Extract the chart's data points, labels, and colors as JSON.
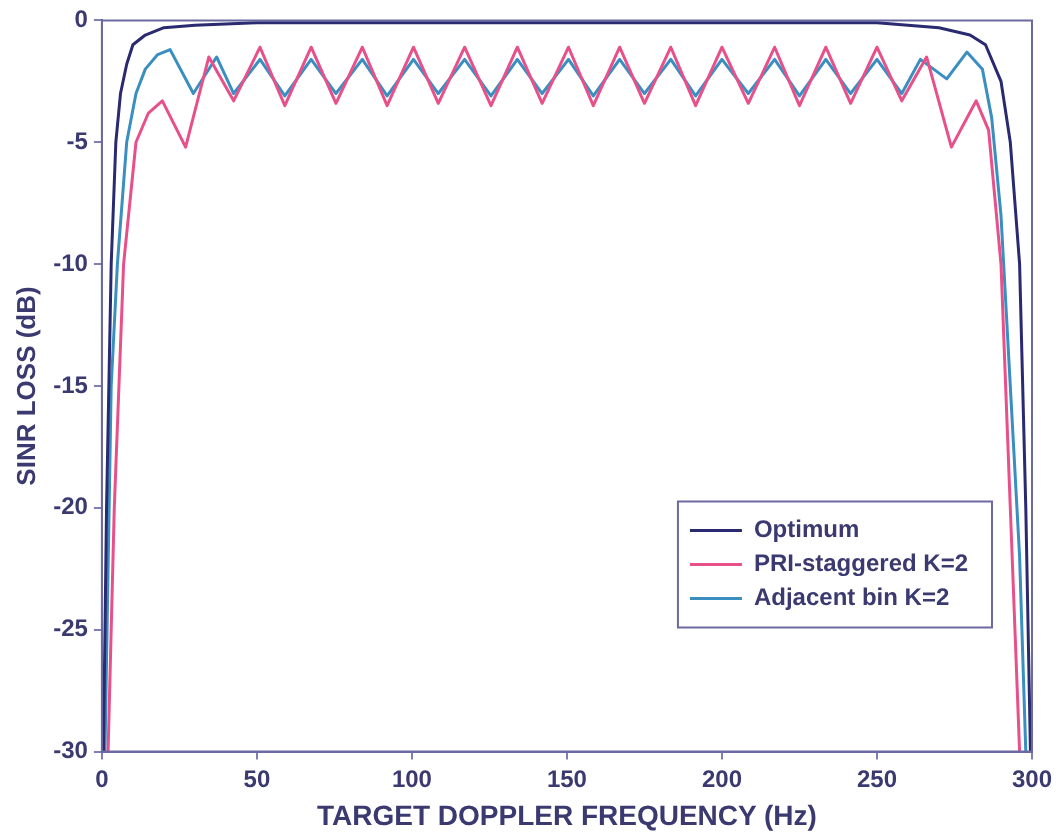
{
  "chart_data": {
    "type": "line",
    "xlabel": "TARGET DOPPLER FREQUENCY (Hz)",
    "ylabel": "SINR LOSS (dB)",
    "xlim": [
      0,
      300
    ],
    "xticks": [
      0,
      50,
      100,
      150,
      200,
      250,
      300
    ],
    "ylim": [
      -30,
      0
    ],
    "yticks": [
      0,
      -5,
      -10,
      -15,
      -20,
      -25,
      -30
    ],
    "grid": false,
    "legend": "bottom right",
    "marker": "none",
    "line_style": "solid",
    "series": [
      {
        "name": "Optimum",
        "color": "#2a2a70",
        "x": [
          0.5,
          1.5,
          3,
          4.5,
          6,
          8,
          10,
          14,
          20,
          30,
          50,
          100,
          150,
          200,
          250,
          270,
          280,
          285,
          290,
          293,
          296,
          298,
          299.5
        ],
        "values": [
          -30,
          -20,
          -10,
          -5,
          -3,
          -1.8,
          -1,
          -0.6,
          -0.3,
          -0.2,
          -0.1,
          -0.1,
          -0.1,
          -0.1,
          -0.1,
          -0.3,
          -0.6,
          -1,
          -2.5,
          -5,
          -10,
          -20,
          -30
        ]
      },
      {
        "name": "PRI-staggered K=2",
        "color": "#e8508a",
        "x": [
          2,
          4,
          7,
          11,
          15,
          19.5,
          27,
          34.5,
          42.5,
          51,
          59,
          67.5,
          75.5,
          84,
          92,
          100.5,
          108.5,
          117,
          125.5,
          134,
          142,
          150.5,
          158.5,
          167,
          175,
          183.5,
          191.5,
          200,
          208.5,
          217,
          225,
          233.5,
          241.5,
          250,
          258,
          266,
          274,
          282,
          286,
          290,
          293,
          296
        ],
        "values": [
          -30,
          -20,
          -10,
          -5,
          -3.8,
          -3.3,
          -5.2,
          -1.5,
          -3.3,
          -1.1,
          -3.5,
          -1.1,
          -3.4,
          -1.1,
          -3.5,
          -1.1,
          -3.4,
          -1.1,
          -3.5,
          -1.1,
          -3.4,
          -1.1,
          -3.5,
          -1.1,
          -3.4,
          -1.1,
          -3.5,
          -1.1,
          -3.4,
          -1.1,
          -3.5,
          -1.1,
          -3.4,
          -1.1,
          -3.3,
          -1.5,
          -5.2,
          -3.3,
          -4.5,
          -10,
          -20,
          -30
        ]
      },
      {
        "name": "Adjacent bin K=2",
        "color": "#3a8fc0",
        "x": [
          1,
          3,
          5,
          8,
          11,
          14,
          18,
          22,
          29.5,
          37,
          42.5,
          51,
          59,
          67.5,
          75.5,
          84,
          92,
          100.5,
          108.5,
          117,
          125.5,
          134,
          142,
          150.5,
          158.5,
          167,
          175,
          183.5,
          191.5,
          200,
          208.5,
          217,
          225,
          233.5,
          241.5,
          250,
          258,
          264,
          272.5,
          279,
          284,
          287,
          290,
          293,
          296,
          298
        ],
        "values": [
          -30,
          -15,
          -10,
          -5,
          -3,
          -2,
          -1.4,
          -1.2,
          -3,
          -1.5,
          -3,
          -1.6,
          -3.1,
          -1.6,
          -3,
          -1.6,
          -3.1,
          -1.6,
          -3,
          -1.6,
          -3.1,
          -1.6,
          -3,
          -1.6,
          -3.1,
          -1.6,
          -3,
          -1.6,
          -3.1,
          -1.6,
          -3,
          -1.6,
          -3.1,
          -1.6,
          -3,
          -1.6,
          -3,
          -1.6,
          -2.4,
          -1.3,
          -2,
          -4,
          -8,
          -15,
          -22,
          -30
        ]
      }
    ]
  }
}
